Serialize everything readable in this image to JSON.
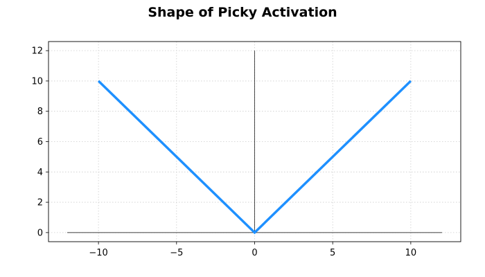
{
  "chart_data": {
    "type": "line",
    "title": "Shape of Picky Activation",
    "xlabel": "",
    "ylabel": "",
    "xlim": [
      -13.2,
      13.2
    ],
    "ylim": [
      -0.6,
      12.6
    ],
    "xticks": [
      -10,
      -5,
      0,
      5,
      10
    ],
    "yticks": [
      0,
      2,
      4,
      6,
      8,
      10,
      12
    ],
    "xtick_labels": [
      "−10",
      "−5",
      "0",
      "5",
      "10"
    ],
    "ytick_labels": [
      "0",
      "2",
      "4",
      "6",
      "8",
      "10",
      "12"
    ],
    "grid": true,
    "legend": "none",
    "series": [
      {
        "color": "#1e90ff",
        "x": [
          -10,
          0,
          10
        ],
        "y": [
          10,
          0,
          10
        ]
      }
    ],
    "reference_lines": [
      {
        "x": [
          -12,
          12
        ],
        "y": [
          0,
          0
        ]
      },
      {
        "x": [
          0,
          0
        ],
        "y": [
          0,
          12
        ]
      }
    ]
  }
}
